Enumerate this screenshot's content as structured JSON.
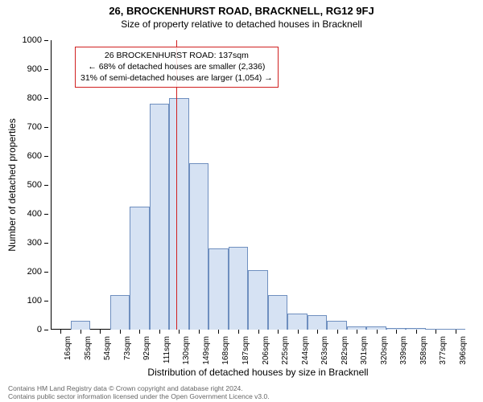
{
  "title_main": "26, BROCKENHURST ROAD, BRACKNELL, RG12 9FJ",
  "title_sub": "Size of property relative to detached houses in Bracknell",
  "y_label": "Number of detached properties",
  "x_label": "Distribution of detached houses by size in Bracknell",
  "footer_line1": "Contains HM Land Registry data © Crown copyright and database right 2024.",
  "footer_line2": "Contains public sector information licensed under the Open Government Licence v3.0.",
  "chart": {
    "type": "histogram",
    "ylim": [
      0,
      1000
    ],
    "ytick_step": 100,
    "x_categories": [
      "16sqm",
      "35sqm",
      "54sqm",
      "73sqm",
      "92sqm",
      "111sqm",
      "130sqm",
      "149sqm",
      "168sqm",
      "187sqm",
      "206sqm",
      "225sqm",
      "244sqm",
      "263sqm",
      "282sqm",
      "301sqm",
      "320sqm",
      "339sqm",
      "358sqm",
      "377sqm",
      "396sqm"
    ],
    "bars": [
      0,
      30,
      0,
      120,
      425,
      780,
      800,
      575,
      280,
      285,
      205,
      120,
      55,
      50,
      30,
      10,
      10,
      5,
      5,
      2,
      2
    ],
    "bar_fill": "#d6e2f3",
    "bar_stroke": "#6f8fbf",
    "bar_stroke_width": 1,
    "background": "#ffffff",
    "axis_color": "#000000",
    "tick_fontsize": 11,
    "label_fontsize": 12,
    "ref_line": {
      "value_sqm": 137,
      "color": "#d02020",
      "width": 1
    },
    "annotation": {
      "lines": [
        "26 BROCKENHURST ROAD: 137sqm",
        "← 68% of detached houses are smaller (2,336)",
        "31% of semi-detached houses are larger (1,054) →"
      ],
      "border_color": "#d02020",
      "border_width": 1,
      "text_color": "#000000",
      "fontsize": 10.5
    }
  }
}
